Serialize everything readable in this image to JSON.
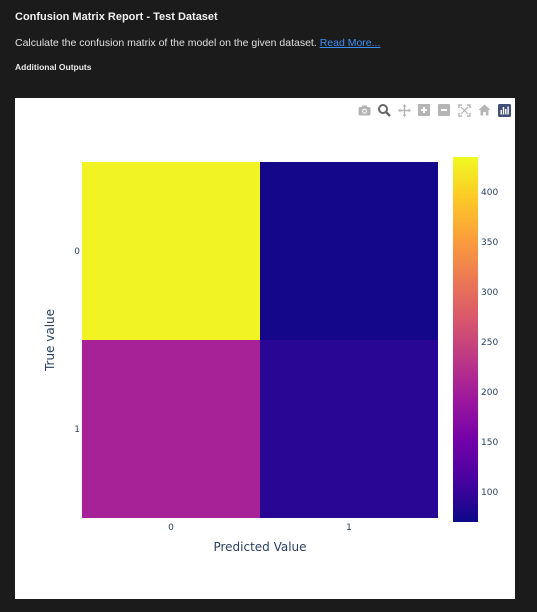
{
  "header": {
    "title": "Confusion Matrix Report - Test Dataset",
    "description": "Calculate the confusion matrix of the model on the given dataset.",
    "read_more": "Read More...",
    "subheading": "Additional Outputs"
  },
  "modebar": {
    "icons": [
      "camera-icon",
      "zoom-icon",
      "pan-icon",
      "zoom-in-icon",
      "zoom-out-icon",
      "autoscale-icon",
      "home-icon",
      "plotly-logo-icon"
    ]
  },
  "chart_data": {
    "type": "heatmap",
    "x_categories": [
      "0",
      "1"
    ],
    "y_categories": [
      "0",
      "1"
    ],
    "z": [
      [
        430,
        75
      ],
      [
        205,
        90
      ]
    ],
    "xlabel": "Predicted Value",
    "ylabel": "True value",
    "colorscale": "plasma",
    "zlim": [
      70,
      435
    ],
    "colorbar_ticks": [
      100,
      150,
      200,
      250,
      300,
      350,
      400
    ]
  }
}
